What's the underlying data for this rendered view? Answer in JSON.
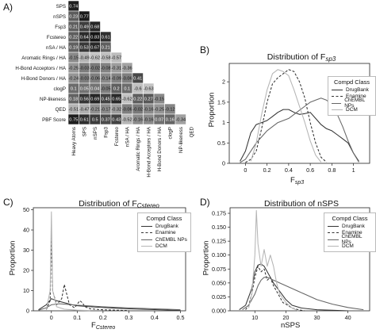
{
  "panel_letters": [
    "A)",
    "B)",
    "C)",
    "D)"
  ],
  "colors": {
    "drugbank": "#333333",
    "enamine": "#333333",
    "chembl": "#666666",
    "dcm": "#b5b5b5"
  },
  "chart_data": [
    {
      "type": "heatmap",
      "panel": "A",
      "labels": [
        "SPS",
        "nSPS",
        "Fsp3",
        "Fcstereo",
        "nSA / HA",
        "Aromatic Rings / HA",
        "H-Bond Acceptors / HA",
        "H-Bond Donors / HA",
        "clogP",
        "NP-likeness",
        "QED",
        "PBF Score"
      ],
      "x_labels": [
        "Heavy Atoms",
        "SPS",
        "nSPS",
        "Fsp3",
        "Fcstereo",
        "nSA / HA",
        "Aromatic Rings / HA",
        "H-Bond Acceptors / HA",
        "H-Bond Donors / HA",
        "clogP",
        "NP-likeness",
        "QED"
      ],
      "rows": [
        {
          "label": "SPS",
          "values": [
            "0.74"
          ]
        },
        {
          "label": "nSPS",
          "values": [
            "0.23",
            "0.77"
          ]
        },
        {
          "label": "Fsp3",
          "values": [
            "0.21",
            "0.49",
            "0.68"
          ]
        },
        {
          "label": "Fcstereo",
          "values": [
            "0.22",
            "0.64",
            "0.83",
            "0.61"
          ]
        },
        {
          "label": "nSA / HA",
          "values": [
            "0.19",
            "0.53",
            "0.67",
            "0.21"
          ]
        },
        {
          "label": "Aromatic Rings / HA",
          "values": [
            "-0.15",
            "-0.49",
            "-0.62",
            "-0.58",
            "-0.57"
          ]
        },
        {
          "label": "H-Bond Acceptors / HA",
          "values": [
            "-0.25",
            "-0.03",
            "-0.02",
            "-0.08",
            "-0.31",
            "-0.36"
          ]
        },
        {
          "label": "H-Bond Donors / HA",
          "values": [
            "-0.24",
            "-0.03",
            "-0.06",
            "-0.14",
            "-0.09",
            "-0.06",
            "0.41"
          ]
        },
        {
          "label": "clogP",
          "values": [
            "0.1",
            "0.05",
            "0.04",
            "-0.05",
            "0.2",
            "0.1",
            "-0.6",
            "-0.63"
          ]
        },
        {
          "label": "NP-likeness",
          "values": [
            "0.18",
            "0.56",
            "0.69",
            "0.45",
            "0.65",
            "-0.62",
            "0.22",
            "0.27",
            "-0.15"
          ]
        },
        {
          "label": "QED",
          "values": [
            "-0.51",
            "-0.47",
            "-0.21",
            "-0.17",
            "-0.32",
            "-0.06",
            "-0.02",
            "-0.16",
            "-0.25",
            "-0.12"
          ]
        },
        {
          "label": "PBF Score",
          "values": [
            "0.75",
            "0.61",
            "0.5",
            "0.37",
            "0.43",
            "-0.52",
            "-0.16",
            "-0.16",
            "0.07",
            "0.16",
            "-0.34"
          ]
        }
      ]
    },
    {
      "type": "line",
      "panel": "B",
      "title": "Distribution of F",
      "title_sub": "sp3",
      "xlabel": "F",
      "xlabel_sub": "sp3",
      "ylabel": "Proportion",
      "xlim": [
        -0.15,
        1.15
      ],
      "ylim": [
        0,
        2.45
      ],
      "xticks": [
        0.0,
        0.2,
        0.4,
        0.6,
        0.8,
        1.0
      ],
      "yticks": [
        0.0,
        0.5,
        1.0,
        1.5,
        2.0
      ],
      "legend_title": "Compd Class",
      "series": [
        {
          "name": "DrugBank",
          "style": "solid",
          "x": [
            -0.05,
            0.0,
            0.05,
            0.1,
            0.15,
            0.2,
            0.25,
            0.3,
            0.35,
            0.4,
            0.45,
            0.5,
            0.55,
            0.6,
            0.65,
            0.7,
            0.75,
            0.8,
            0.85,
            0.9,
            0.95,
            1.0,
            1.05
          ],
          "y": [
            0.05,
            0.3,
            0.75,
            0.95,
            1.0,
            1.05,
            1.15,
            1.25,
            1.32,
            1.32,
            1.25,
            1.2,
            1.22,
            1.25,
            1.1,
            0.95,
            0.85,
            0.8,
            0.7,
            0.6,
            0.5,
            0.25,
            0.05
          ]
        },
        {
          "name": "Enamine",
          "style": "dashed",
          "x": [
            0.0,
            0.05,
            0.1,
            0.15,
            0.2,
            0.25,
            0.3,
            0.35,
            0.4,
            0.45,
            0.5,
            0.55,
            0.6,
            0.65,
            0.7,
            0.75
          ],
          "y": [
            0.02,
            0.1,
            0.3,
            0.85,
            1.5,
            1.95,
            2.1,
            2.2,
            2.3,
            2.25,
            2.0,
            1.6,
            1.0,
            0.5,
            0.15,
            0.03
          ]
        },
        {
          "name": "ChEMBL NPs",
          "style": "solid",
          "x": [
            -0.05,
            0.0,
            0.05,
            0.1,
            0.15,
            0.2,
            0.25,
            0.3,
            0.35,
            0.4,
            0.45,
            0.5,
            0.55,
            0.6,
            0.65,
            0.7,
            0.75,
            0.8,
            0.85,
            0.9,
            0.95,
            1.0,
            1.05
          ],
          "y": [
            0.02,
            0.1,
            0.3,
            0.5,
            0.65,
            0.8,
            0.9,
            1.0,
            1.05,
            1.1,
            1.2,
            1.3,
            1.4,
            1.5,
            1.55,
            1.6,
            1.55,
            1.45,
            1.2,
            0.9,
            0.55,
            0.25,
            0.03
          ]
        },
        {
          "name": "DCM",
          "style": "solid",
          "x": [
            0.05,
            0.1,
            0.15,
            0.2,
            0.25,
            0.3,
            0.35,
            0.4,
            0.45,
            0.5,
            0.55,
            0.6,
            0.65,
            0.7
          ],
          "y": [
            0.05,
            0.5,
            1.2,
            1.8,
            2.2,
            2.3,
            2.25,
            2.15,
            1.8,
            1.4,
            1.0,
            0.55,
            0.2,
            0.03
          ]
        }
      ]
    },
    {
      "type": "line",
      "panel": "C",
      "title": "Distribution of F",
      "title_sub": "Cstereo",
      "xlabel": "F",
      "xlabel_sub": "Cstereo",
      "ylabel": "Proportion",
      "xlim": [
        -0.07,
        0.52
      ],
      "ylim": [
        0,
        51
      ],
      "xticks": [
        0.0,
        0.1,
        0.2,
        0.3,
        0.4,
        0.5
      ],
      "yticks": [
        0,
        10,
        20,
        30,
        40,
        50
      ],
      "legend_title": "Compd Class",
      "series": [
        {
          "name": "DrugBank",
          "style": "solid",
          "x": [
            -0.05,
            -0.02,
            0.0,
            0.02,
            0.05,
            0.08,
            0.1,
            0.15,
            0.2,
            0.25,
            0.3,
            0.35,
            0.4,
            0.45,
            0.5
          ],
          "y": [
            0.5,
            3,
            6,
            5,
            4,
            3,
            2.5,
            2,
            1.6,
            1.3,
            1.0,
            0.8,
            0.6,
            0.4,
            0.2
          ]
        },
        {
          "name": "Enamine",
          "style": "dashed",
          "x": [
            -0.02,
            -0.005,
            0.0,
            0.005,
            0.02,
            0.04,
            0.05,
            0.06,
            0.07,
            0.09,
            0.11,
            0.12,
            0.13,
            0.15,
            0.2,
            0.25,
            0.3
          ],
          "y": [
            0.5,
            5,
            37,
            10,
            3,
            6,
            13,
            8,
            3,
            1.5,
            5,
            4,
            2,
            1,
            0.5,
            0.3,
            0.1
          ]
        },
        {
          "name": "ChEMBL NPs",
          "style": "solid",
          "x": [
            -0.05,
            -0.02,
            0.0,
            0.03,
            0.06,
            0.1,
            0.15,
            0.2,
            0.25,
            0.3,
            0.35,
            0.4,
            0.45,
            0.5
          ],
          "y": [
            0.3,
            1.5,
            3,
            3.5,
            3.2,
            2.8,
            2.4,
            2.0,
            1.7,
            1.4,
            1.2,
            1.0,
            0.8,
            0.5
          ]
        },
        {
          "name": "DCM",
          "style": "solid",
          "x": [
            -0.02,
            -0.005,
            0.0,
            0.005,
            0.02,
            0.05,
            0.1,
            0.15
          ],
          "y": [
            0.5,
            10,
            49,
            10,
            2,
            0.8,
            0.3,
            0.1
          ]
        }
      ]
    },
    {
      "type": "line",
      "panel": "D",
      "title": "Distribution of nSPS",
      "xlabel": "nSPS",
      "ylabel": "Proportion",
      "xlim": [
        2,
        47
      ],
      "ylim": [
        0,
        0.185
      ],
      "xticks": [
        10,
        20,
        30,
        40
      ],
      "yticks": [
        0.0,
        0.025,
        0.05,
        0.075,
        0.1,
        0.125,
        0.15,
        0.175
      ],
      "ytick_labels": [
        "0.000",
        "0.025",
        "0.050",
        "0.075",
        "0.100",
        "0.125",
        "0.150",
        "0.175"
      ],
      "legend_title": "Compd Class",
      "series": [
        {
          "name": "DrugBank",
          "style": "solid",
          "x": [
            5,
            7,
            9,
            10,
            11,
            12,
            13,
            14,
            15,
            16,
            18,
            20,
            22,
            25,
            30,
            35,
            40
          ],
          "y": [
            0.002,
            0.01,
            0.04,
            0.07,
            0.082,
            0.084,
            0.08,
            0.07,
            0.06,
            0.05,
            0.035,
            0.02,
            0.01,
            0.005,
            0.002,
            0.001,
            0.0
          ]
        },
        {
          "name": "Enamine",
          "style": "dashed",
          "x": [
            7,
            8,
            9,
            10,
            11,
            12,
            13,
            14,
            15,
            16,
            17,
            18,
            19,
            20,
            22,
            24,
            26
          ],
          "y": [
            0.002,
            0.01,
            0.03,
            0.06,
            0.08,
            0.07,
            0.075,
            0.055,
            0.06,
            0.045,
            0.035,
            0.025,
            0.015,
            0.012,
            0.005,
            0.002,
            0.0
          ]
        },
        {
          "name": "ChEMBL NPs",
          "style": "solid",
          "x": [
            6,
            8,
            10,
            11,
            12,
            13,
            14,
            15,
            16,
            18,
            20,
            22,
            24,
            26,
            28,
            30,
            35,
            40,
            45
          ],
          "y": [
            0.002,
            0.01,
            0.03,
            0.045,
            0.055,
            0.06,
            0.06,
            0.058,
            0.055,
            0.05,
            0.045,
            0.04,
            0.035,
            0.03,
            0.025,
            0.02,
            0.012,
            0.006,
            0.002
          ]
        },
        {
          "name": "DCM",
          "style": "solid",
          "x": [
            8,
            9,
            10,
            10.5,
            11,
            12,
            13,
            14,
            15,
            16,
            17,
            18,
            20,
            22,
            24
          ],
          "y": [
            0.005,
            0.03,
            0.1,
            0.18,
            0.12,
            0.08,
            0.11,
            0.08,
            0.1,
            0.08,
            0.05,
            0.03,
            0.015,
            0.005,
            0.0
          ]
        }
      ]
    }
  ]
}
